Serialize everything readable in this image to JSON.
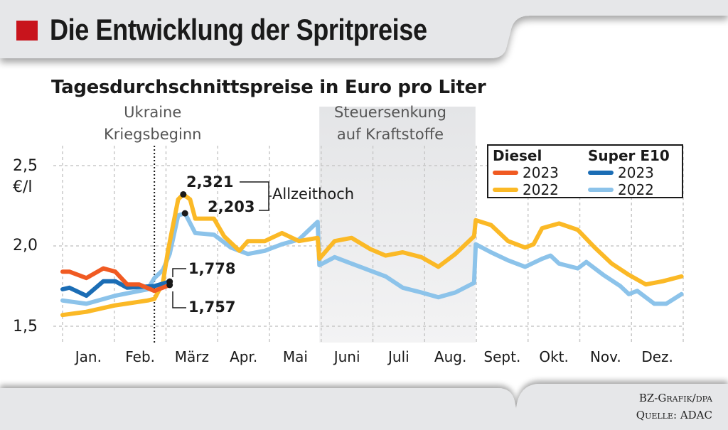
{
  "header": {
    "title": "Die Entwicklung der Spritpreise",
    "accent_color": "#c8141c"
  },
  "source": {
    "line1": "BZ-Grafik/dpa",
    "line2": "Quelle: ADAC"
  },
  "chart_data": {
    "type": "line",
    "title": "Die Entwicklung der Spritpreise",
    "subtitle": "Tagesdurchschnittspreise in Euro pro Liter",
    "ylabel": "€/l",
    "ylim": [
      1.5,
      2.5
    ],
    "yticks": [
      "2,5",
      "2,0",
      "1,5"
    ],
    "ytick_values": [
      2.5,
      2.0,
      1.5
    ],
    "xticks": [
      "Jan.",
      "Feb.",
      "März",
      "Apr.",
      "Mai",
      "Juni",
      "Juli",
      "Aug.",
      "Sept.",
      "Okt.",
      "Nov.",
      "Dez."
    ],
    "grid": true,
    "legend_placement": "top-right",
    "legend": {
      "diesel_header": "Diesel",
      "e10_header": "Super E10"
    },
    "events": [
      {
        "label_line1": "Ukraine",
        "label_line2": "Kriegsbeginn",
        "date": "02-24"
      },
      {
        "label_line1": "Steuersenkung",
        "label_line2": "auf Kraftstoffe",
        "start": "06-01",
        "end": "08-31"
      }
    ],
    "annotations": {
      "max_diesel": "2,321",
      "max_e10": "2,203",
      "max_label": "Allzeithoch",
      "e10_2023_last": "1,778",
      "diesel_2023_last": "1,757"
    },
    "series": [
      {
        "name": "2022",
        "fuel": "Super E10",
        "color": "#8cc3ea",
        "points": [
          [
            "01-01",
            1.66
          ],
          [
            "01-15",
            1.64
          ],
          [
            "02-01",
            1.69
          ],
          [
            "02-20",
            1.73
          ],
          [
            "02-24",
            1.8
          ],
          [
            "03-01",
            1.85
          ],
          [
            "03-05",
            1.95
          ],
          [
            "03-10",
            2.19
          ],
          [
            "03-14",
            2.203
          ],
          [
            "03-20",
            2.08
          ],
          [
            "03-31",
            2.07
          ],
          [
            "04-10",
            1.99
          ],
          [
            "04-20",
            1.95
          ],
          [
            "04-30",
            1.97
          ],
          [
            "05-10",
            2.01
          ],
          [
            "05-20",
            2.04
          ],
          [
            "05-25",
            2.09
          ],
          [
            "05-31",
            2.15
          ],
          [
            "06-01",
            1.88
          ],
          [
            "06-10",
            1.93
          ],
          [
            "06-20",
            1.89
          ],
          [
            "06-30",
            1.85
          ],
          [
            "07-10",
            1.81
          ],
          [
            "07-20",
            1.74
          ],
          [
            "07-31",
            1.71
          ],
          [
            "08-10",
            1.68
          ],
          [
            "08-20",
            1.71
          ],
          [
            "08-31",
            1.77
          ],
          [
            "09-01",
            2.01
          ],
          [
            "09-10",
            1.96
          ],
          [
            "09-20",
            1.91
          ],
          [
            "09-30",
            1.87
          ],
          [
            "10-10",
            1.92
          ],
          [
            "10-15",
            1.94
          ],
          [
            "10-20",
            1.89
          ],
          [
            "10-31",
            1.86
          ],
          [
            "11-05",
            1.9
          ],
          [
            "11-15",
            1.82
          ],
          [
            "11-25",
            1.75
          ],
          [
            "11-30",
            1.7
          ],
          [
            "12-05",
            1.72
          ],
          [
            "12-15",
            1.64
          ],
          [
            "12-22",
            1.64
          ],
          [
            "12-31",
            1.7
          ]
        ]
      },
      {
        "name": "2022",
        "fuel": "Diesel",
        "color": "#fbb926",
        "points": [
          [
            "01-01",
            1.57
          ],
          [
            "01-15",
            1.59
          ],
          [
            "02-01",
            1.63
          ],
          [
            "02-20",
            1.66
          ],
          [
            "02-24",
            1.67
          ],
          [
            "03-01",
            1.77
          ],
          [
            "03-04",
            1.97
          ],
          [
            "03-10",
            2.29
          ],
          [
            "03-13",
            2.321
          ],
          [
            "03-17",
            2.29
          ],
          [
            "03-20",
            2.17
          ],
          [
            "03-31",
            2.17
          ],
          [
            "04-06",
            2.06
          ],
          [
            "04-15",
            1.97
          ],
          [
            "04-20",
            2.03
          ],
          [
            "04-30",
            2.03
          ],
          [
            "05-10",
            2.08
          ],
          [
            "05-20",
            2.03
          ],
          [
            "05-31",
            2.05
          ],
          [
            "06-01",
            1.92
          ],
          [
            "06-10",
            2.03
          ],
          [
            "06-20",
            2.05
          ],
          [
            "07-01",
            1.98
          ],
          [
            "07-10",
            1.94
          ],
          [
            "07-20",
            1.96
          ],
          [
            "07-31",
            1.93
          ],
          [
            "08-10",
            1.87
          ],
          [
            "08-20",
            1.95
          ],
          [
            "08-31",
            2.06
          ],
          [
            "09-01",
            2.16
          ],
          [
            "09-10",
            2.13
          ],
          [
            "09-20",
            2.03
          ],
          [
            "09-30",
            1.99
          ],
          [
            "10-05",
            2.01
          ],
          [
            "10-10",
            2.11
          ],
          [
            "10-20",
            2.14
          ],
          [
            "10-31",
            2.1
          ],
          [
            "11-10",
            1.99
          ],
          [
            "11-20",
            1.89
          ],
          [
            "11-30",
            1.82
          ],
          [
            "12-10",
            1.76
          ],
          [
            "12-20",
            1.78
          ],
          [
            "12-31",
            1.81
          ]
        ]
      },
      {
        "name": "2023",
        "fuel": "Super E10",
        "color": "#1b6db5",
        "points": [
          [
            "01-01",
            1.73
          ],
          [
            "01-05",
            1.74
          ],
          [
            "01-15",
            1.69
          ],
          [
            "01-25",
            1.78
          ],
          [
            "02-01",
            1.78
          ],
          [
            "02-08",
            1.74
          ],
          [
            "02-24",
            1.75
          ],
          [
            "03-05",
            1.778
          ]
        ]
      },
      {
        "name": "2023",
        "fuel": "Diesel",
        "color": "#f05a22",
        "points": [
          [
            "01-01",
            1.84
          ],
          [
            "01-05",
            1.84
          ],
          [
            "01-15",
            1.8
          ],
          [
            "01-25",
            1.86
          ],
          [
            "02-01",
            1.84
          ],
          [
            "02-08",
            1.76
          ],
          [
            "02-15",
            1.76
          ],
          [
            "02-24",
            1.72
          ],
          [
            "03-05",
            1.757
          ]
        ]
      }
    ]
  }
}
